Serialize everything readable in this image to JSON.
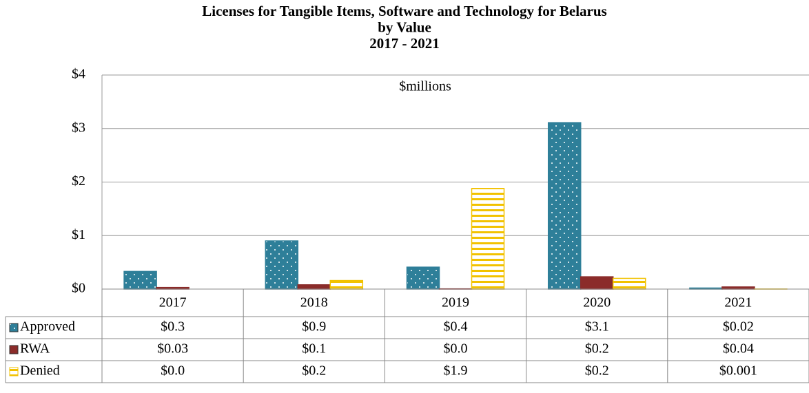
{
  "chart_data": {
    "type": "bar",
    "title": [
      "Licenses  for Tangible Items, Software and Technology for Belarus",
      "by Value",
      "2017 - 2021"
    ],
    "subtitle": "$millions",
    "categories": [
      "2017",
      "2018",
      "2019",
      "2020",
      "2021"
    ],
    "series": [
      {
        "name": "Approved",
        "color": "#2e7f99",
        "values": [
          0.33,
          0.9,
          0.41,
          3.11,
          0.02
        ],
        "value_labels": [
          "$0.3",
          "$0.9",
          "$0.4",
          "$3.1",
          "$0.02"
        ]
      },
      {
        "name": "RWA",
        "color": "#8b2c2a",
        "values": [
          0.03,
          0.08,
          0.004,
          0.23,
          0.04
        ],
        "value_labels": [
          "$0.03",
          "$0.1",
          "$0.0",
          "$0.2",
          "$0.04"
        ]
      },
      {
        "name": "Denied",
        "color": "#f2c200",
        "values": [
          0.0,
          0.16,
          1.88,
          0.2,
          0.001
        ],
        "value_labels": [
          "$0.0",
          "$0.2",
          "$1.9",
          "$0.2",
          "$0.001"
        ]
      }
    ],
    "ylim": [
      0,
      4
    ],
    "yticks": [
      {
        "value": 0,
        "label": "$0"
      },
      {
        "value": 1,
        "label": "$1"
      },
      {
        "value": 2,
        "label": "$2"
      },
      {
        "value": 3,
        "label": "$3"
      },
      {
        "value": 4,
        "label": "$4"
      }
    ],
    "grid": true
  }
}
